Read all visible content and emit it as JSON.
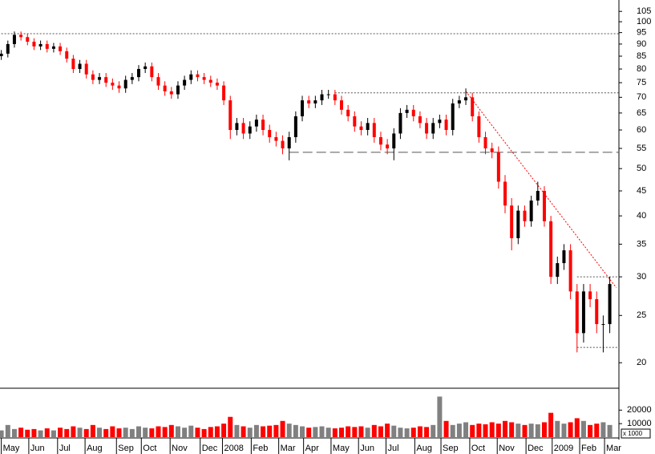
{
  "chart_data": {
    "type": "candlestick",
    "x": [
      0,
      5,
      10,
      15,
      20,
      25,
      30,
      35,
      40,
      45,
      50,
      55,
      60,
      65,
      70,
      75,
      80,
      85,
      90,
      95,
      100,
      105,
      110,
      115,
      120,
      125,
      130,
      135,
      140,
      145,
      150,
      155,
      160,
      165,
      170,
      175,
      180,
      185,
      190,
      195,
      200,
      205,
      210,
      215,
      220,
      225,
      230,
      235,
      240,
      245,
      250,
      255,
      260,
      265,
      270,
      275,
      280,
      285,
      290,
      295,
      300,
      305,
      310,
      315,
      320,
      325,
      330,
      335,
      340,
      345,
      350,
      355,
      360,
      365,
      370,
      375,
      380,
      385,
      390,
      395,
      400,
      405,
      410,
      415,
      420,
      425,
      430,
      435,
      440,
      445,
      450,
      455,
      460,
      465
    ],
    "open": [
      85,
      86,
      90,
      94,
      93,
      91,
      89,
      90,
      88,
      89,
      87,
      84,
      80,
      82,
      78,
      76,
      77,
      75,
      74,
      73,
      76,
      77,
      80,
      81,
      77,
      74,
      72,
      71,
      74,
      76,
      78,
      77,
      76,
      75,
      74,
      69,
      60,
      62,
      59,
      61,
      63,
      60,
      58,
      57,
      55,
      58,
      64,
      69,
      68,
      69,
      71,
      71,
      69,
      66,
      64,
      61,
      60,
      62,
      58,
      56,
      55,
      59,
      65,
      66,
      64,
      62,
      59,
      62,
      63,
      60,
      68,
      69,
      70,
      64,
      58,
      55,
      54,
      47,
      42,
      36,
      41,
      39,
      43,
      45,
      39,
      30,
      32,
      34,
      28,
      23,
      28,
      27,
      24,
      24
    ],
    "high": [
      87.5,
      91.5,
      95.5,
      95.5,
      94.5,
      92.5,
      91.5,
      91.5,
      90.5,
      90.5,
      88.5,
      85.5,
      83.5,
      83.5,
      79.5,
      78.5,
      78.5,
      76.5,
      75.5,
      77.5,
      78.5,
      81.5,
      82.5,
      82.5,
      78.5,
      75.5,
      73.5,
      75.5,
      77.5,
      79.5,
      79.5,
      78.5,
      77.5,
      76.5,
      75.5,
      70.5,
      63.5,
      63.5,
      62.5,
      64.5,
      64.5,
      61.5,
      59.5,
      58.5,
      59.5,
      65.5,
      70.5,
      70.5,
      70.5,
      72.5,
      72.5,
      72.5,
      70.5,
      67.5,
      65.5,
      62.5,
      63.5,
      63.5,
      59.5,
      57.5,
      60.5,
      66.5,
      67.5,
      67.5,
      65.5,
      63.5,
      63.5,
      64.5,
      64.5,
      69.5,
      70.5,
      73,
      71.5,
      65.5,
      59.5,
      56.5,
      55.5,
      48.5,
      43.5,
      42,
      42,
      44,
      47,
      46,
      40,
      33,
      35,
      35,
      29,
      29,
      29,
      28,
      25,
      30
    ],
    "low": [
      83.5,
      84.5,
      88.5,
      91.5,
      89.5,
      87.5,
      87.5,
      86.5,
      86.5,
      85.5,
      82.5,
      78.5,
      78.5,
      76.5,
      74.5,
      74.5,
      73.5,
      72.5,
      71.5,
      71.5,
      74.5,
      75.5,
      78.5,
      75.5,
      72.5,
      70.5,
      69.5,
      69.5,
      72.5,
      74.5,
      75.5,
      74.5,
      73.5,
      72.5,
      67.5,
      57.5,
      58.5,
      57.5,
      57.5,
      59.5,
      58.5,
      56.5,
      55.5,
      53.5,
      52,
      56.5,
      62.5,
      66.5,
      66.5,
      67.5,
      69.5,
      67.5,
      64.5,
      62.5,
      59.5,
      58.5,
      58.5,
      56.5,
      54.5,
      53.5,
      52,
      57.5,
      63.5,
      62.5,
      60.5,
      57.5,
      57.5,
      60.5,
      58.5,
      58.5,
      66.5,
      67.5,
      62.5,
      56.5,
      53.5,
      52.5,
      45.5,
      40.5,
      34,
      35,
      38,
      38,
      42,
      38,
      29,
      29,
      31,
      27,
      21,
      22,
      26,
      23,
      21,
      23
    ],
    "close": [
      86,
      90,
      94,
      93,
      91,
      89,
      90,
      88,
      89,
      87,
      84,
      80,
      82,
      78,
      76,
      77,
      75,
      74,
      73,
      76,
      77,
      80,
      81,
      77,
      74,
      72,
      71,
      74,
      76,
      78,
      77,
      76,
      75,
      74,
      69,
      60,
      62,
      59,
      61,
      63,
      60,
      58,
      57,
      55,
      58,
      64,
      69,
      68,
      69,
      71,
      71,
      69,
      66,
      64,
      61,
      60,
      62,
      58,
      56,
      55,
      59,
      65,
      66,
      64,
      62,
      59,
      62,
      63,
      60,
      68,
      69,
      70,
      64,
      58,
      55,
      54,
      47,
      42,
      36,
      41,
      39,
      43,
      45,
      39,
      30,
      32,
      34,
      28,
      23,
      28,
      27,
      24,
      24,
      29
    ],
    "up_color": "#000000",
    "down_color": "#ff0000",
    "volume": [
      5000,
      9000,
      6000,
      7000,
      5500,
      6000,
      5000,
      6500,
      5000,
      7000,
      6000,
      8000,
      7000,
      6000,
      9000,
      7000,
      6000,
      8000,
      6500,
      7000,
      6000,
      8000,
      7000,
      6500,
      8000,
      7500,
      9000,
      8000,
      7000,
      8500,
      7000,
      6000,
      7500,
      8000,
      10000,
      15000,
      9000,
      8000,
      7000,
      9000,
      8000,
      8500,
      9000,
      12000,
      10000,
      9000,
      8000,
      7000,
      7500,
      8000,
      7000,
      6500,
      7000,
      8000,
      7500,
      8000,
      7000,
      9000,
      8000,
      10000,
      8500,
      7000,
      6500,
      7000,
      8000,
      7500,
      9000,
      30000,
      12000,
      9000,
      10000,
      11000,
      9000,
      10000,
      9500,
      11000,
      10000,
      12000,
      11000,
      10000,
      9000,
      10000,
      9500,
      11000,
      18000,
      12000,
      10000,
      11000,
      14000,
      12000,
      9000,
      10000,
      11000,
      9000
    ],
    "volume_up_color": "#808080",
    "volume_down_color": "#ff0000",
    "xlim": [
      -1,
      472
    ],
    "xticks": [
      {
        "value": 0,
        "label": "May"
      },
      {
        "value": 21,
        "label": "Jun"
      },
      {
        "value": 43,
        "label": "Jul"
      },
      {
        "value": 64,
        "label": "Aug"
      },
      {
        "value": 88,
        "label": "Sep"
      },
      {
        "value": 107,
        "label": "Oct"
      },
      {
        "value": 129,
        "label": "Nov"
      },
      {
        "value": 152,
        "label": "Dec"
      },
      {
        "value": 169,
        "label": "2008"
      },
      {
        "value": 191,
        "label": "Feb"
      },
      {
        "value": 212,
        "label": "Mar"
      },
      {
        "value": 231,
        "label": "Apr"
      },
      {
        "value": 252,
        "label": "May"
      },
      {
        "value": 273,
        "label": "Jun"
      },
      {
        "value": 294,
        "label": "Jul"
      },
      {
        "value": 316,
        "label": "Aug"
      },
      {
        "value": 336,
        "label": "Sep"
      },
      {
        "value": 358,
        "label": "Oct"
      },
      {
        "value": 379,
        "label": "Nov"
      },
      {
        "value": 401,
        "label": "Dec"
      },
      {
        "value": 421,
        "label": "2009"
      },
      {
        "value": 442,
        "label": "Feb"
      },
      {
        "value": 461,
        "label": "Mar"
      }
    ],
    "ylim": [
      17.8,
      110.8
    ],
    "log_scale": true,
    "yticks": [
      20,
      25,
      30,
      35,
      40,
      45,
      50,
      55,
      60,
      65,
      70,
      75,
      80,
      85,
      90,
      95,
      100,
      105
    ],
    "volume_ylim": [
      0,
      35000
    ],
    "volume_yticks": [
      10000,
      20000
    ],
    "volume_unit": "x 1000",
    "reference_lines": [
      {
        "x": [
          0,
          472
        ],
        "y": [
          94.5,
          94.5
        ],
        "style": "dotted",
        "color": "#555555"
      },
      {
        "x": [
          255,
          472
        ],
        "y": [
          71.5,
          71.5
        ],
        "style": "dotted",
        "color": "#555555"
      },
      {
        "x": [
          220,
          472
        ],
        "y": [
          54,
          54
        ],
        "style": "dashed",
        "color": "#555555"
      },
      {
        "x": [
          355,
          470
        ],
        "y": [
          72,
          28.5
        ],
        "style": "dotted",
        "color": "#ff0000"
      },
      {
        "x": [
          440,
          472
        ],
        "y": [
          30,
          30
        ],
        "style": "dotted",
        "color": "#555555"
      },
      {
        "x": [
          440,
          472
        ],
        "y": [
          21.5,
          21.5
        ],
        "style": "dotted",
        "color": "#555555"
      }
    ]
  }
}
